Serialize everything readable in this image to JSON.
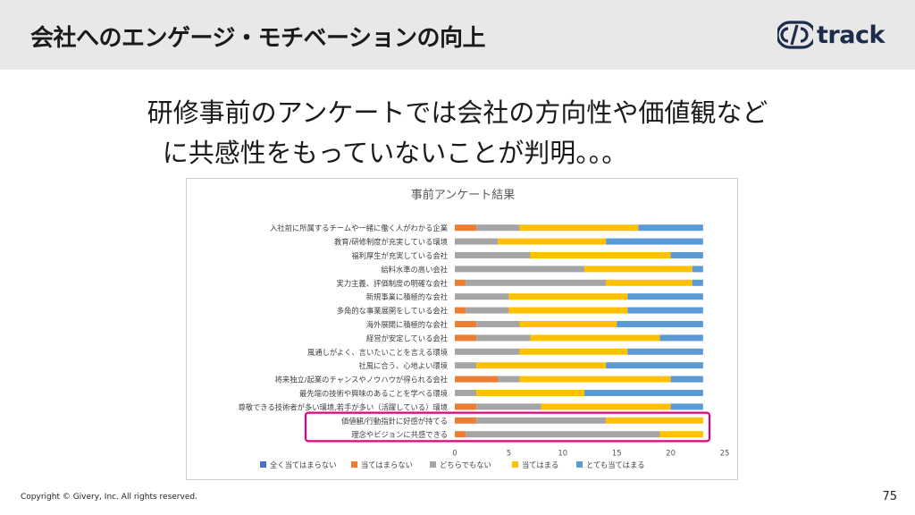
{
  "header": {
    "title": "会社へのエンゲージ・モチベーションの向上",
    "logo_text": "track"
  },
  "headline": {
    "line1": "研修事前のアンケートでは会社の方向性や価値観など",
    "line2": "に共感性をもっていないことが判明。。。"
  },
  "colors": {
    "series": [
      "#4472C4",
      "#ED7D31",
      "#A5A5A5",
      "#FFC000",
      "#5B9BD5"
    ],
    "highlight": "#E0007A",
    "header_band": "#e8e8e8"
  },
  "chart_data": {
    "type": "bar",
    "orientation": "horizontal",
    "stacked": true,
    "title": "事前アンケート結果",
    "categories": [
      "入社前に所属するチームや一緒に働く人がわかる企業",
      "教育/研修制度が充実している環境",
      "福利厚生が充実している会社",
      "給料水準の高い会社",
      "実力主義、評価制度の明確な会社",
      "新規事業に積極的な会社",
      "多角的な事業展開をしている会社",
      "海外展開に積極的な会社",
      "経営が安定している会社",
      "風通しがよく、言いたいことを言える環境",
      "社風に合う、心地よい環境",
      "将来独立/起業のチャンスやノウハウが得られる会社",
      "最先端の技術や興味のあることを学べる環境",
      "尊敬できる技術者が多い環境,若手が多い（活躍している）環境",
      "価値観/行動指針に好感が持てる",
      "理念やビジョンに共感できる"
    ],
    "series": [
      {
        "name": "全く当てはまらない",
        "values": [
          0,
          0,
          0,
          0,
          0,
          0,
          0,
          0,
          0,
          0,
          0,
          0,
          0,
          0,
          0,
          0
        ]
      },
      {
        "name": "当てはまらない",
        "values": [
          2,
          0,
          0,
          0,
          1,
          0,
          1,
          2,
          2,
          0,
          0,
          4,
          0,
          2,
          2,
          1
        ]
      },
      {
        "name": "どちらでもない",
        "values": [
          4,
          4,
          7,
          12,
          13,
          5,
          4,
          4,
          5,
          6,
          2,
          2,
          2,
          6,
          12,
          18
        ]
      },
      {
        "name": "当てはまる",
        "values": [
          11,
          10,
          13,
          10,
          8,
          11,
          11,
          9,
          12,
          10,
          12,
          14,
          10,
          12,
          9,
          4
        ]
      },
      {
        "name": "とても当てはまる",
        "values": [
          6,
          9,
          3,
          1,
          1,
          7,
          7,
          8,
          4,
          7,
          9,
          3,
          11,
          3,
          0,
          0
        ]
      }
    ],
    "xlim": [
      0,
      25
    ],
    "x_ticks": [
      0,
      5,
      10,
      15,
      20,
      25
    ],
    "grid": false,
    "legend_position": "bottom",
    "highlighted_categories": [
      "価値観/行動指針に好感が持てる",
      "理念やビジョンに共感できる"
    ]
  },
  "footer": {
    "copyright": "Copyright © Givery, Inc. All rights reserved.",
    "page_number": "75"
  }
}
